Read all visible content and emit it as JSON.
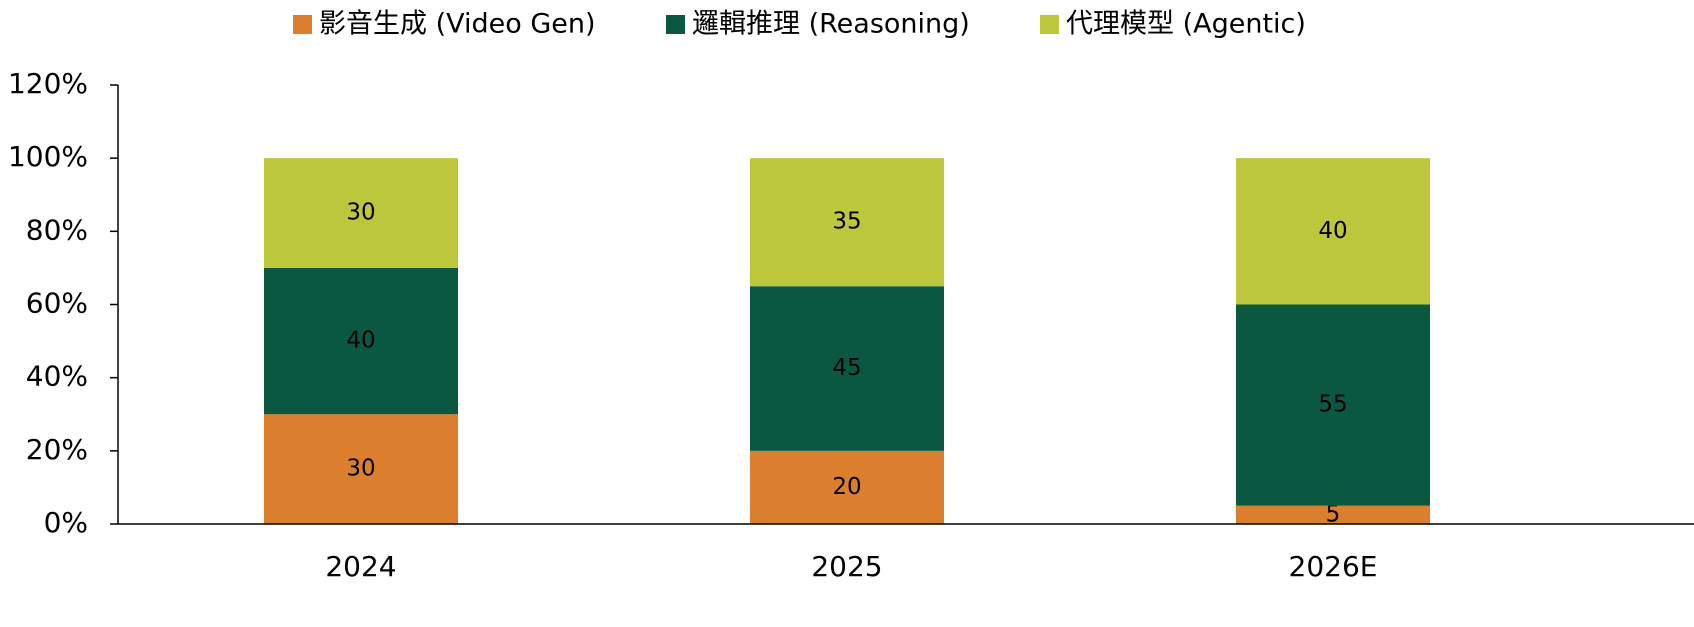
{
  "chart_data": {
    "type": "stacked_bar",
    "categories": [
      "2024",
      "2025",
      "2026E"
    ],
    "series": [
      {
        "name": "影音生成 (Video Gen)",
        "color": "#db7f2e",
        "values": [
          30,
          20,
          5
        ]
      },
      {
        "name": "邏輯推理 (Reasoning)",
        "color": "#0a5840",
        "values": [
          40,
          45,
          55
        ]
      },
      {
        "name": "代理模型 (Agentic)",
        "color": "#bdc73b",
        "values": [
          30,
          35,
          40
        ]
      }
    ],
    "ylim": [
      0,
      120
    ],
    "yticks": [
      {
        "value": 0,
        "label": "0%"
      },
      {
        "value": 20,
        "label": "20%"
      },
      {
        "value": 40,
        "label": "40%"
      },
      {
        "value": 60,
        "label": "60%"
      },
      {
        "value": 80,
        "label": "80%"
      },
      {
        "value": 100,
        "label": "100%"
      },
      {
        "value": 120,
        "label": "120%"
      }
    ],
    "legend": "top"
  }
}
